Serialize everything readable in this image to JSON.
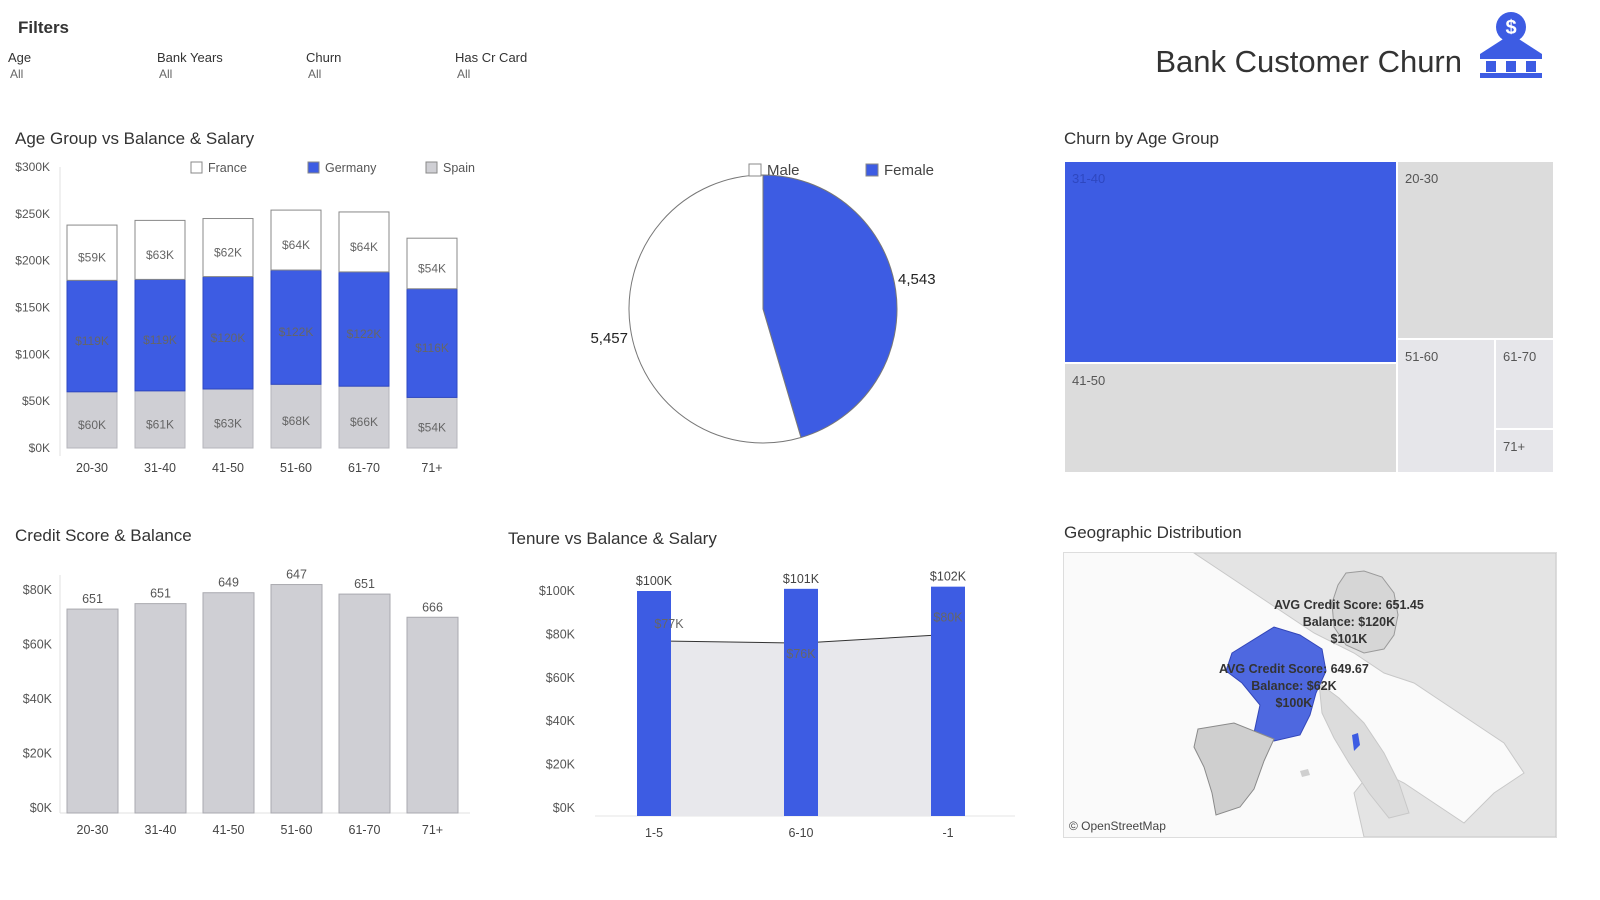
{
  "filters": {
    "title": "Filters",
    "items": [
      {
        "label": "Age",
        "value": "All"
      },
      {
        "label": "Bank Years",
        "value": "All"
      },
      {
        "label": "Churn",
        "value": "All"
      },
      {
        "label": "Has Cr Card",
        "value": "All"
      }
    ]
  },
  "header": {
    "title": "Bank Customer Churn",
    "logo_icon": "bank-dollar-icon"
  },
  "colors": {
    "accent": "#3d5ce3",
    "gray": "#cfcfd4",
    "light_gray": "#dcdcdc",
    "lighter_gray": "#e6e6ea"
  },
  "chart_data": [
    {
      "id": "age_group",
      "type": "bar",
      "title": "Age Group vs Balance & Salary",
      "categories": [
        "20-30",
        "31-40",
        "41-50",
        "51-60",
        "61-70",
        "71+"
      ],
      "y_ticks": [
        "$0K",
        "$50K",
        "$100K",
        "$150K",
        "$200K",
        "$250K",
        "$300K"
      ],
      "ylim": [
        0,
        300000
      ],
      "stacked": true,
      "legend": [
        "France",
        "Germany",
        "Spain"
      ],
      "legend_position": "top",
      "series": [
        {
          "name": "Spain",
          "values": [
            60000,
            61000,
            63000,
            68000,
            66000,
            54000
          ],
          "labels": [
            "$60K",
            "$61K",
            "$63K",
            "$68K",
            "$66K",
            "$54K"
          ],
          "color": "#cfcfd4"
        },
        {
          "name": "Germany",
          "values": [
            119000,
            119000,
            120000,
            122000,
            122000,
            116000
          ],
          "labels": [
            "$119K",
            "$119K",
            "$120K",
            "$122K",
            "$122K",
            "$116K"
          ],
          "color": "#3d5ce3"
        },
        {
          "name": "France",
          "values": [
            59000,
            63000,
            62000,
            64000,
            64000,
            54000
          ],
          "labels": [
            "$59K",
            "$63K",
            "$62K",
            "$64K",
            "$64K",
            "$54K"
          ],
          "color": "#ffffff"
        }
      ]
    },
    {
      "id": "gender",
      "type": "pie",
      "legend": [
        "Male",
        "Female"
      ],
      "slices": [
        {
          "name": "Female",
          "value": 4543,
          "label": "4,543",
          "color": "#3d5ce3"
        },
        {
          "name": "Male",
          "value": 5457,
          "label": "5,457",
          "color": "#ffffff"
        }
      ]
    },
    {
      "id": "churn_age",
      "type": "treemap",
      "title": "Churn by Age Group",
      "cells": [
        {
          "label": "31-40",
          "color": "#3d5ce3"
        },
        {
          "label": "20-30",
          "color": "#dcdcdc"
        },
        {
          "label": "41-50",
          "color": "#dcdcdc"
        },
        {
          "label": "51-60",
          "color": "#e6e6ea"
        },
        {
          "label": "61-70",
          "color": "#e6e6ea"
        },
        {
          "label": "71+",
          "color": "#e6e6ea"
        }
      ]
    },
    {
      "id": "credit_score",
      "type": "bar",
      "title": "Credit Score & Balance",
      "categories": [
        "20-30",
        "31-40",
        "41-50",
        "51-60",
        "61-70",
        "71+"
      ],
      "values": [
        73000,
        75000,
        79000,
        82000,
        78500,
        70000
      ],
      "data_labels": [
        "651",
        "651",
        "649",
        "647",
        "651",
        "666"
      ],
      "y_ticks": [
        "$0K",
        "$20K",
        "$40K",
        "$60K",
        "$80K"
      ],
      "ylim": [
        0,
        80000
      ]
    },
    {
      "id": "tenure",
      "type": "bar",
      "title": "Tenure vs Balance & Salary",
      "categories": [
        "1-5",
        "6-10",
        "-1"
      ],
      "series": [
        {
          "name": "Balance",
          "values": [
            100000,
            101000,
            102000
          ],
          "labels": [
            "$100K",
            "$101K",
            "$102K"
          ]
        },
        {
          "name": "Salary",
          "values": [
            77000,
            76000,
            80000
          ],
          "labels": [
            "$77K",
            "$76K",
            "$80K"
          ]
        }
      ],
      "y_ticks": [
        "$0K",
        "$20K",
        "$40K",
        "$60K",
        "$80K",
        "$100K"
      ],
      "ylim": [
        0,
        100000
      ]
    },
    {
      "id": "geo",
      "type": "map",
      "title": "Geographic Distribution",
      "annotations": [
        {
          "lines": [
            "AVG Credit Score: 651.45",
            "Balance: $120K",
            "$101K"
          ]
        },
        {
          "lines": [
            "AVG Credit Score: 649.67",
            "Balance: $62K",
            "$100K"
          ]
        }
      ],
      "attribution": "© OpenStreetMap"
    }
  ]
}
